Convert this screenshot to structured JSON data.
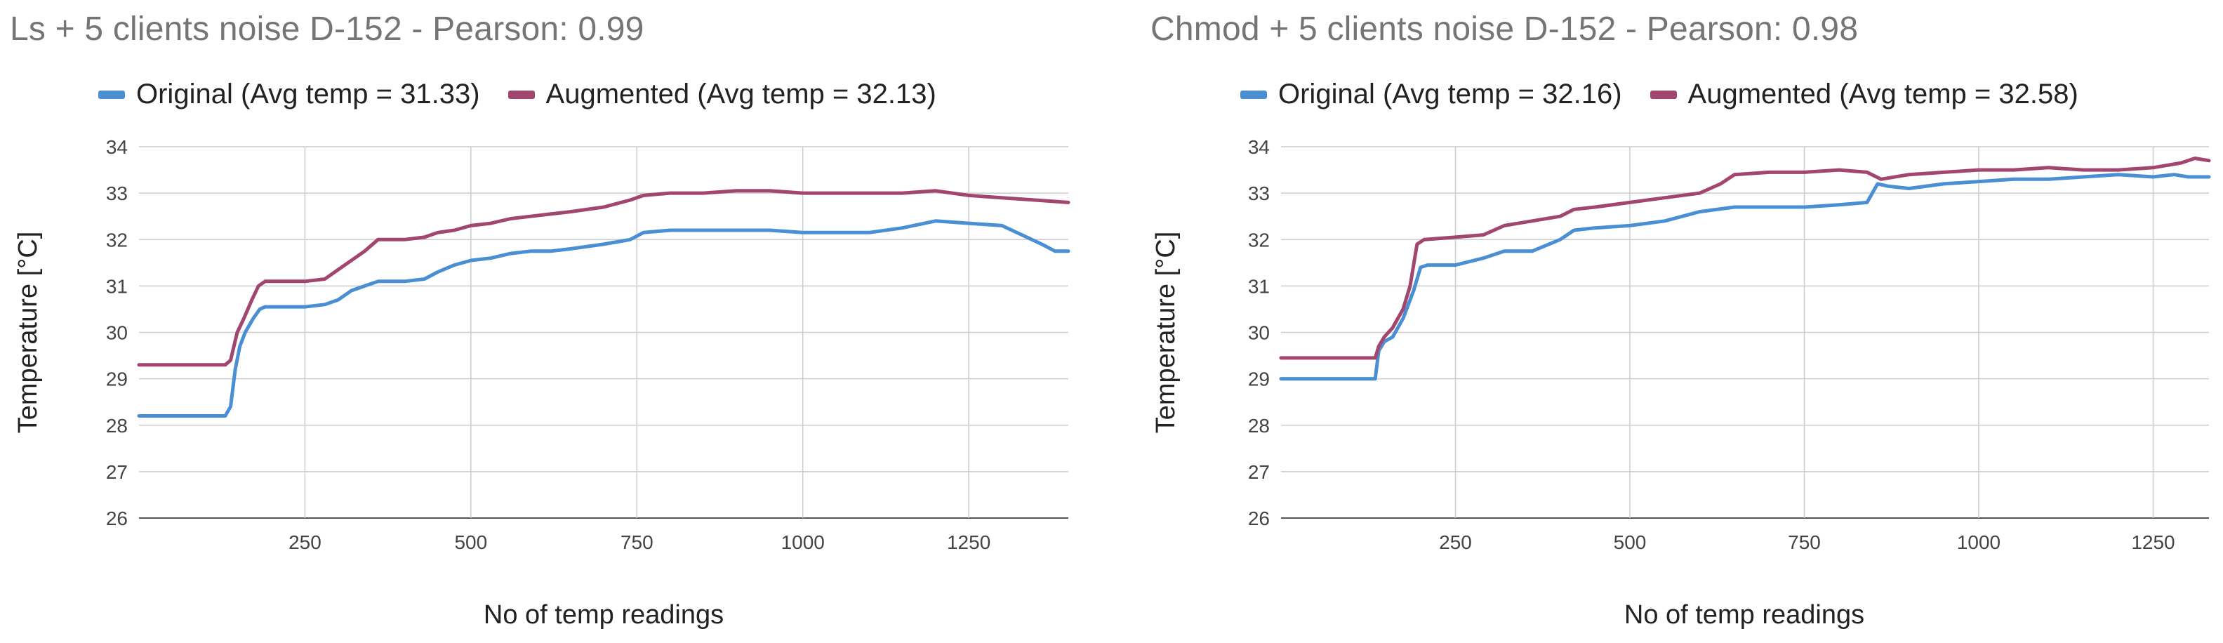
{
  "colors": {
    "original": "#4a8fd4",
    "augmented": "#a3466f",
    "grid": "#cccccc"
  },
  "chart_data": [
    {
      "type": "line",
      "title": "Ls + 5 clients noise D-152 - Pearson: 0.99",
      "xlabel": "No of temp readings",
      "ylabel": "Temperature [°C]",
      "xlim": [
        0,
        1400
      ],
      "ylim": [
        26,
        34
      ],
      "x_ticks": [
        250,
        500,
        750,
        1000,
        1250
      ],
      "y_ticks": [
        26,
        27,
        28,
        29,
        30,
        31,
        32,
        33,
        34
      ],
      "grid": true,
      "legend_position": "top",
      "series": [
        {
          "name": "Original (Avg temp = 31.33)",
          "x": [
            0,
            130,
            138,
            145,
            152,
            160,
            172,
            182,
            190,
            200,
            250,
            280,
            300,
            320,
            340,
            360,
            400,
            430,
            450,
            475,
            500,
            530,
            560,
            590,
            620,
            650,
            700,
            740,
            760,
            800,
            850,
            900,
            950,
            1000,
            1050,
            1100,
            1150,
            1200,
            1250,
            1300,
            1330,
            1360,
            1380,
            1400
          ],
          "y": [
            28.2,
            28.2,
            28.4,
            29.2,
            29.7,
            30.0,
            30.3,
            30.5,
            30.55,
            30.55,
            30.55,
            30.6,
            30.7,
            30.9,
            31.0,
            31.1,
            31.1,
            31.15,
            31.3,
            31.45,
            31.55,
            31.6,
            31.7,
            31.75,
            31.75,
            31.8,
            31.9,
            32.0,
            32.15,
            32.2,
            32.2,
            32.2,
            32.2,
            32.15,
            32.15,
            32.15,
            32.25,
            32.4,
            32.35,
            32.3,
            32.1,
            31.9,
            31.75,
            31.75
          ]
        },
        {
          "name": "Augmented (Avg temp = 32.13)",
          "x": [
            0,
            130,
            138,
            148,
            158,
            170,
            180,
            190,
            200,
            250,
            280,
            300,
            320,
            340,
            360,
            400,
            430,
            450,
            475,
            500,
            530,
            560,
            590,
            620,
            650,
            700,
            740,
            760,
            800,
            850,
            900,
            950,
            1000,
            1050,
            1100,
            1150,
            1200,
            1250,
            1300,
            1350,
            1400
          ],
          "y": [
            29.3,
            29.3,
            29.4,
            30.0,
            30.3,
            30.7,
            31.0,
            31.1,
            31.1,
            31.1,
            31.15,
            31.35,
            31.55,
            31.75,
            32.0,
            32.0,
            32.05,
            32.15,
            32.2,
            32.3,
            32.35,
            32.45,
            32.5,
            32.55,
            32.6,
            32.7,
            32.85,
            32.95,
            33.0,
            33.0,
            33.05,
            33.05,
            33.0,
            33.0,
            33.0,
            33.0,
            33.05,
            32.95,
            32.9,
            32.85,
            32.8
          ]
        }
      ]
    },
    {
      "type": "line",
      "title": "Chmod + 5 clients noise D-152 - Pearson: 0.98",
      "xlabel": "No of temp readings",
      "ylabel": "Temperature [°C]",
      "xlim": [
        0,
        1330
      ],
      "ylim": [
        26,
        34
      ],
      "x_ticks": [
        250,
        500,
        750,
        1000,
        1250
      ],
      "y_ticks": [
        26,
        27,
        28,
        29,
        30,
        31,
        32,
        33,
        34
      ],
      "grid": true,
      "legend_position": "top",
      "series": [
        {
          "name": "Original (Avg temp = 32.16)",
          "x": [
            0,
            135,
            140,
            148,
            160,
            175,
            190,
            200,
            210,
            250,
            290,
            320,
            360,
            400,
            420,
            450,
            500,
            550,
            600,
            650,
            700,
            750,
            800,
            840,
            855,
            870,
            900,
            950,
            1000,
            1050,
            1100,
            1150,
            1200,
            1250,
            1280,
            1300,
            1330
          ],
          "y": [
            29.0,
            29.0,
            29.6,
            29.8,
            29.9,
            30.3,
            30.9,
            31.4,
            31.45,
            31.45,
            31.6,
            31.75,
            31.75,
            32.0,
            32.2,
            32.25,
            32.3,
            32.4,
            32.6,
            32.7,
            32.7,
            32.7,
            32.75,
            32.8,
            33.2,
            33.15,
            33.1,
            33.2,
            33.25,
            33.3,
            33.3,
            33.35,
            33.4,
            33.35,
            33.4,
            33.35,
            33.35
          ]
        },
        {
          "name": "Augmented (Avg temp = 32.58)",
          "x": [
            0,
            135,
            140,
            148,
            160,
            175,
            185,
            195,
            205,
            250,
            290,
            320,
            360,
            400,
            420,
            450,
            500,
            550,
            600,
            630,
            650,
            700,
            750,
            800,
            840,
            860,
            900,
            950,
            1000,
            1050,
            1100,
            1150,
            1200,
            1250,
            1290,
            1310,
            1330
          ],
          "y": [
            29.45,
            29.45,
            29.7,
            29.9,
            30.1,
            30.5,
            31.0,
            31.9,
            32.0,
            32.05,
            32.1,
            32.3,
            32.4,
            32.5,
            32.65,
            32.7,
            32.8,
            32.9,
            33.0,
            33.2,
            33.4,
            33.45,
            33.45,
            33.5,
            33.45,
            33.3,
            33.4,
            33.45,
            33.5,
            33.5,
            33.55,
            33.5,
            33.5,
            33.55,
            33.65,
            33.75,
            33.7
          ]
        }
      ]
    }
  ]
}
